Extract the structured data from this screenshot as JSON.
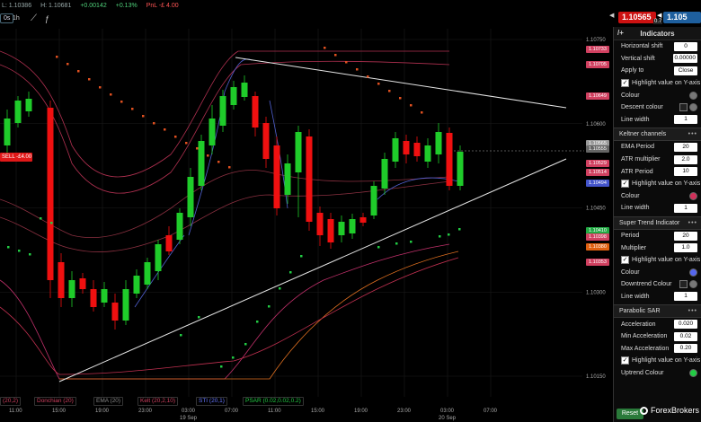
{
  "topbar": {
    "low": "L: 1.10386",
    "high": "H: 1.10681",
    "change": "+0.00142",
    "change_pct": "+0.13%",
    "pnl": "PnL -£ 4.00"
  },
  "timeframe": {
    "left": "0s",
    "active": "1h"
  },
  "trade": {
    "sell_price": "1.10565",
    "buy_price": "1.105",
    "spread": "0.7"
  },
  "panel": {
    "title": "Indicators",
    "rows_top": [
      {
        "label": "Horizontal shift",
        "value": "0"
      },
      {
        "label": "Vertical shift",
        "value": "0.00000"
      },
      {
        "label": "Apply to",
        "value": "Close"
      }
    ],
    "highlight_label": "Highlight value on Y-axis",
    "colour_label": "Colour",
    "descent_colour_label": "Descent colour",
    "line_width_label": "Line width",
    "line_width_value": "1",
    "keltner": {
      "title": "Keltner channels",
      "ema_label": "EMA Period",
      "ema_value": "20",
      "atr_mult_label": "ATR multiplier",
      "atr_mult_value": "2.0",
      "atr_period_label": "ATR Period",
      "atr_period_value": "10"
    },
    "supertrend": {
      "title": "Super Trend Indicator",
      "period_label": "Period",
      "period_value": "20",
      "mult_label": "Multiplier",
      "mult_value": "1.0",
      "downtrend_label": "Downtrend Colour"
    },
    "psar": {
      "title": "Parabolic SAR",
      "accel_label": "Acceleration",
      "accel_value": "0.020",
      "min_label": "Min Acceleration",
      "min_value": "0.02",
      "max_label": "Max Acceleration",
      "max_value": "0.20",
      "uptrend_label": "Uptrend Colour"
    },
    "reset_label": "Reset",
    "brand": "ForexBrokers"
  },
  "chart_data": {
    "type": "candlestick",
    "y_ticks": [
      "1.10750",
      "1.10600",
      "1.10450",
      "1.10300",
      "1.10150"
    ],
    "price_tags": [
      {
        "value": "1.10733",
        "color": "#d04060"
      },
      {
        "value": "1.10705",
        "color": "#d04060"
      },
      {
        "value": "1.10649",
        "color": "#d04060"
      },
      {
        "value": "1.10565",
        "color": "#999999"
      },
      {
        "value": "1.10555",
        "color": "#666666"
      },
      {
        "value": "1.10529",
        "color": "#d04060"
      },
      {
        "value": "1.10514",
        "color": "#d04060"
      },
      {
        "value": "1.10494",
        "color": "#4455cc"
      },
      {
        "value": "1.10410",
        "color": "#22aa44"
      },
      {
        "value": "1.10398",
        "color": "#d04060"
      },
      {
        "value": "1.10380",
        "color": "#e06010"
      },
      {
        "value": "1.10353",
        "color": "#d04060"
      }
    ],
    "sell_marker": "SELL -£4.00",
    "x_ticks": [
      {
        "label": "11:00"
      },
      {
        "label": "15:00"
      },
      {
        "label": "19:00"
      },
      {
        "label": "23:00"
      },
      {
        "label": "03:00",
        "sub": "19 Sep"
      },
      {
        "label": "07:00"
      },
      {
        "label": "11:00"
      },
      {
        "label": "15:00"
      },
      {
        "label": "19:00"
      },
      {
        "label": "23:00"
      },
      {
        "label": "03:00",
        "sub": "20 Sep"
      },
      {
        "label": "07:00"
      }
    ],
    "legends": [
      {
        "label": "(20,2)",
        "color": "#d04060"
      },
      {
        "label": "Donchian (20)",
        "color": "#d04060"
      },
      {
        "label": "EMA (20)",
        "color": "#888888"
      },
      {
        "label": "Kelt (20,2,10)",
        "color": "#d04060"
      },
      {
        "label": "STI (20,1)",
        "color": "#6677ff"
      },
      {
        "label": "PSAR (0.02,0.02,0.2)",
        "color": "#22cc44"
      }
    ]
  }
}
